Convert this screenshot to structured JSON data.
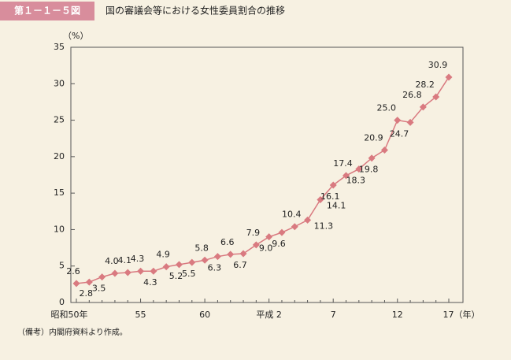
{
  "header": {
    "figure": "第１－１－５図",
    "title": "国の審議会等における女性委員割合の推移"
  },
  "footer": {
    "note": "（備考）内閣府資料より作成。"
  },
  "chart_data": {
    "type": "line",
    "y_unit": "（%）",
    "categories": [
      "昭和50年",
      null,
      null,
      null,
      null,
      "55",
      null,
      null,
      null,
      null,
      "60",
      null,
      null,
      null,
      null,
      "平成 2",
      null,
      null,
      null,
      null,
      "7",
      null,
      null,
      null,
      null,
      "12",
      null,
      null,
      null,
      "17（年）"
    ],
    "series": [
      {
        "color": "#d97a80",
        "values": [
          2.6,
          2.8,
          3.5,
          4.0,
          4.1,
          4.3,
          4.3,
          4.9,
          5.2,
          5.5,
          5.8,
          6.3,
          6.6,
          6.7,
          7.9,
          9.0,
          9.6,
          10.4,
          11.3,
          14.1,
          16.1,
          17.4,
          18.3,
          19.8,
          20.9,
          25.0,
          24.7,
          26.8,
          28.2,
          30.9
        ],
        "value_labels": [
          "2.6",
          "2.8",
          "3.5",
          "4.0",
          "4.1",
          "4.3",
          "4.3",
          "4.9",
          "5.2",
          "5.5",
          "5.8",
          "6.3",
          "6.6",
          "6.7",
          "7.9",
          "9.0",
          "9.6",
          "10.4",
          "11.3",
          "14.1",
          "16.1",
          "17.4",
          "18.3",
          "19.8",
          "20.9",
          "25.0",
          "24.7",
          "26.8",
          "28.2",
          "30.9"
        ]
      }
    ],
    "ylim": [
      0,
      35
    ],
    "yticks": [
      0,
      5,
      10,
      15,
      20,
      25,
      30,
      35
    ],
    "grid": false
  }
}
